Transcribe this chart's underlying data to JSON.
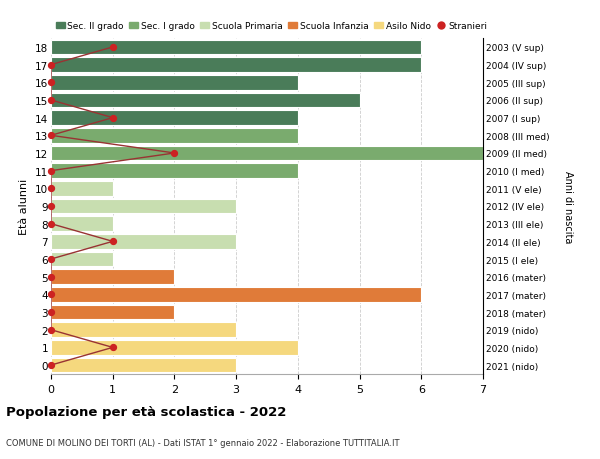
{
  "ages": [
    18,
    17,
    16,
    15,
    14,
    13,
    12,
    11,
    10,
    9,
    8,
    7,
    6,
    5,
    4,
    3,
    2,
    1,
    0
  ],
  "right_labels": [
    "2003 (V sup)",
    "2004 (IV sup)",
    "2005 (III sup)",
    "2006 (II sup)",
    "2007 (I sup)",
    "2008 (III med)",
    "2009 (II med)",
    "2010 (I med)",
    "2011 (V ele)",
    "2012 (IV ele)",
    "2013 (III ele)",
    "2014 (II ele)",
    "2015 (I ele)",
    "2016 (mater)",
    "2017 (mater)",
    "2018 (mater)",
    "2019 (nido)",
    "2020 (nido)",
    "2021 (nido)"
  ],
  "bar_values": [
    6,
    6,
    4,
    5,
    4,
    4,
    7,
    4,
    1,
    3,
    1,
    3,
    1,
    2,
    6,
    2,
    3,
    4,
    3
  ],
  "bar_colors": [
    "#4a7c59",
    "#4a7c59",
    "#4a7c59",
    "#4a7c59",
    "#4a7c59",
    "#7aab6e",
    "#7aab6e",
    "#7aab6e",
    "#c8deb0",
    "#c8deb0",
    "#c8deb0",
    "#c8deb0",
    "#c8deb0",
    "#e07b39",
    "#e07b39",
    "#e07b39",
    "#f5d87e",
    "#f5d87e",
    "#f5d87e"
  ],
  "stranieri_values": [
    1,
    0,
    0,
    0,
    1,
    0,
    2,
    0,
    0,
    0,
    0,
    1,
    0,
    0,
    0,
    0,
    0,
    1,
    0
  ],
  "legend_items": [
    {
      "label": "Sec. II grado",
      "color": "#4a7c59",
      "type": "patch"
    },
    {
      "label": "Sec. I grado",
      "color": "#7aab6e",
      "type": "patch"
    },
    {
      "label": "Scuola Primaria",
      "color": "#c8deb0",
      "type": "patch"
    },
    {
      "label": "Scuola Infanzia",
      "color": "#e07b39",
      "type": "patch"
    },
    {
      "label": "Asilo Nido",
      "color": "#f5d87e",
      "type": "patch"
    },
    {
      "label": "Stranieri",
      "color": "#cc2222",
      "type": "marker"
    }
  ],
  "ylabel": "Età alunni",
  "ylabel_right": "Anni di nascita",
  "xlim": [
    0,
    7
  ],
  "xticks": [
    0,
    1,
    2,
    3,
    4,
    5,
    6,
    7
  ],
  "ylim": [
    -0.5,
    18.5
  ],
  "title": "Popolazione per età scolastica - 2022",
  "subtitle": "COMUNE DI MOLINO DEI TORTI (AL) - Dati ISTAT 1° gennaio 2022 - Elaborazione TUTTITALIA.IT",
  "bg_color": "#ffffff",
  "stranieri_line_color": "#993333",
  "stranieri_marker_color": "#cc2222",
  "grid_color": "#cccccc",
  "bar_edge_color": "#ffffff",
  "bar_height": 0.82
}
